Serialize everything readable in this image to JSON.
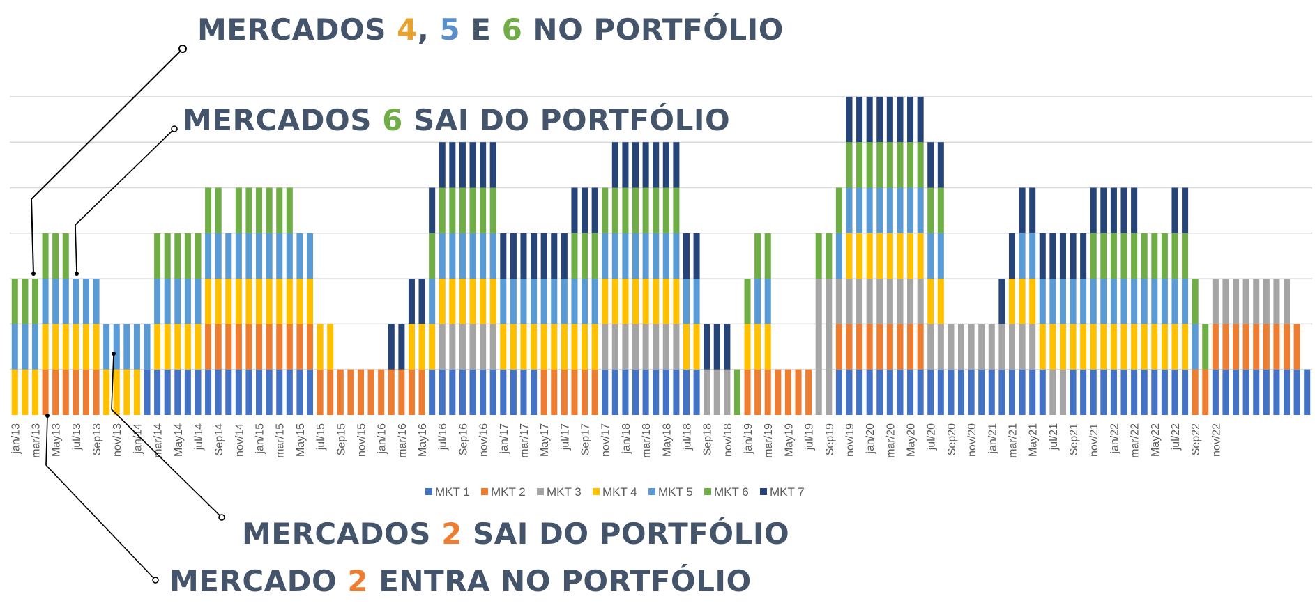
{
  "colors": {
    "MKT 1": "#4472c4",
    "MKT 2": "#ed7d31",
    "MKT 3": "#a5a5a5",
    "MKT 4": "#ffc000",
    "MKT 5": "#5b9bd5",
    "MKT 6": "#70ad47",
    "MKT 7": "#264478",
    "grid": "#d9d9d9",
    "annotation_text": "#44546a"
  },
  "annotations": {
    "a1": {
      "pre": "MERCADOS ",
      "n1": "4",
      "sep1": ", ",
      "n2": "5",
      "sep2": " E ",
      "n3": "6",
      "post": " NO PORTFÓLIO"
    },
    "a2": {
      "pre": "MERCADOS ",
      "n1": "6",
      "post": " SAI DO PORTFÓLIO"
    },
    "a3": {
      "pre": "MERCADOS ",
      "n1": "2",
      "post": " SAI DO PORTFÓLIO"
    },
    "a4": {
      "pre": "MERCADO ",
      "n1": "2",
      "post": " ENTRA NO PORTFÓLIO"
    }
  },
  "chart_data": {
    "type": "bar",
    "stacked": true,
    "ylim": [
      0,
      7
    ],
    "grid": true,
    "legend_position": "bottom",
    "x_tick_labels": [
      "jan/13",
      "mar/13",
      "May13",
      "jul/13",
      "Sep13",
      "nov/13",
      "jan/14",
      "mar/14",
      "May14",
      "jul/14",
      "Sep14",
      "nov/14",
      "jan/15",
      "mar/15",
      "May15",
      "jul/15",
      "Sep15",
      "nov/15",
      "jan/16",
      "mar/16",
      "May16",
      "jul/16",
      "Sep16",
      "nov/16",
      "jan/17",
      "mar/17",
      "May17",
      "jul/17",
      "Sep17",
      "nov/17",
      "jan/18",
      "mar/18",
      "May18",
      "jul/18",
      "Sep18",
      "nov/18",
      "jan/19",
      "mar/19",
      "May19",
      "jul/19",
      "Sep19",
      "nov/19",
      "jan/20",
      "mar/20",
      "May20",
      "jul/20",
      "Sep20",
      "nov/20",
      "jan/21",
      "mar/21",
      "May21",
      "jul/21",
      "Sep21",
      "nov/21",
      "jan/22",
      "mar/22",
      "May22",
      "jul/22",
      "Sep22",
      "nov/22"
    ],
    "series_names": [
      "MKT 1",
      "MKT 2",
      "MKT 3",
      "MKT 4",
      "MKT 5",
      "MKT 6",
      "MKT 7"
    ],
    "segments": [
      {
        "count": 3,
        "stack": [
          "MKT 4",
          "MKT 5",
          "MKT 6"
        ]
      },
      {
        "count": 3,
        "stack": [
          "MKT 2",
          "MKT 4",
          "MKT 5",
          "MKT 6"
        ]
      },
      {
        "count": 3,
        "stack": [
          "MKT 2",
          "MKT 4",
          "MKT 5"
        ]
      },
      {
        "count": 4,
        "stack": [
          "MKT 4",
          "MKT 5"
        ]
      },
      {
        "count": 1,
        "stack": [
          "MKT 1",
          "MKT 5"
        ]
      },
      {
        "count": 1,
        "stack": [
          "MKT 1",
          "MKT 4",
          "MKT 5",
          "MKT 6"
        ]
      },
      {
        "count": 4,
        "stack": [
          "MKT 1",
          "MKT 4",
          "MKT 5",
          "MKT 6"
        ]
      },
      {
        "count": 2,
        "stack": [
          "MKT 1",
          "MKT 2",
          "MKT 4",
          "MKT 5",
          "MKT 6"
        ]
      },
      {
        "count": 1,
        "stack": [
          "MKT 1",
          "MKT 2",
          "MKT 4",
          "MKT 5"
        ]
      },
      {
        "count": 6,
        "stack": [
          "MKT 1",
          "MKT 2",
          "MKT 4",
          "MKT 5",
          "MKT 6"
        ]
      },
      {
        "count": 1,
        "stack": [
          "MKT 1",
          "MKT 2",
          "MKT 4",
          "MKT 5"
        ]
      },
      {
        "count": 1,
        "stack": [
          "MKT 1",
          "MKT 2",
          "MKT 4",
          "MKT 5"
        ]
      },
      {
        "count": 2,
        "stack": [
          "MKT 2",
          "MKT 4"
        ]
      },
      {
        "count": 5,
        "stack": [
          "MKT 2"
        ]
      },
      {
        "count": 2,
        "stack": [
          "MKT 2",
          "MKT 7"
        ]
      },
      {
        "count": 2,
        "stack": [
          "MKT 2",
          "MKT 4",
          "MKT 7"
        ]
      },
      {
        "count": 1,
        "stack": [
          "MKT 1",
          "MKT 4",
          "MKT 5",
          "MKT 6",
          "MKT 7"
        ]
      },
      {
        "count": 6,
        "stack": [
          "MKT 1",
          "MKT 3",
          "MKT 4",
          "MKT 5",
          "MKT 6",
          "MKT 7"
        ]
      },
      {
        "count": 4,
        "stack": [
          "MKT 1",
          "MKT 4",
          "MKT 5",
          "MKT 7"
        ]
      },
      {
        "count": 3,
        "stack": [
          "MKT 2",
          "MKT 4",
          "MKT 5",
          "MKT 7"
        ]
      },
      {
        "count": 2,
        "stack": [
          "MKT 2",
          "MKT 4",
          "MKT 5",
          "MKT 6",
          "MKT 7"
        ]
      },
      {
        "count": 1,
        "stack": [
          "MKT 2",
          "MKT 4",
          "MKT 5",
          "MKT 6",
          "MKT 7"
        ]
      },
      {
        "count": 1,
        "stack": [
          "MKT 1",
          "MKT 3",
          "MKT 4",
          "MKT 5",
          "MKT 6"
        ]
      },
      {
        "count": 7,
        "stack": [
          "MKT 1",
          "MKT 3",
          "MKT 4",
          "MKT 5",
          "MKT 6",
          "MKT 7"
        ]
      },
      {
        "count": 2,
        "stack": [
          "MKT 1",
          "MKT 4",
          "MKT 5",
          "MKT 7"
        ]
      },
      {
        "count": 2,
        "stack": [
          "MKT 3",
          "MKT 7"
        ]
      },
      {
        "count": 1,
        "stack": [
          "MKT 3",
          "MKT 7"
        ]
      },
      {
        "count": 1,
        "stack": [
          "MKT 6"
        ]
      },
      {
        "count": 1,
        "stack": [
          "MKT 2",
          "MKT 4",
          "MKT 6"
        ]
      },
      {
        "count": 2,
        "stack": [
          "MKT 2",
          "MKT 4",
          "MKT 5",
          "MKT 6"
        ]
      },
      {
        "count": 4,
        "stack": [
          "MKT 2"
        ]
      },
      {
        "count": 2,
        "stack": [
          "MKT 3",
          "MKT 3",
          "MKT 3",
          "MKT 6"
        ]
      },
      {
        "count": 1,
        "stack": [
          "MKT 1",
          "MKT 2",
          "MKT 3",
          "MKT 5",
          "MKT 6"
        ]
      },
      {
        "count": 8,
        "stack": [
          "MKT 1",
          "MKT 2",
          "MKT 3",
          "MKT 4",
          "MKT 5",
          "MKT 6",
          "MKT 7"
        ]
      },
      {
        "count": 1,
        "stack": [
          "MKT 1",
          "MKT 3",
          "MKT 4",
          "MKT 5",
          "MKT 6",
          "MKT 7"
        ]
      },
      {
        "count": 1,
        "stack": [
          "MKT 1",
          "MKT 3",
          "MKT 4",
          "MKT 5",
          "MKT 6",
          "MKT 7"
        ]
      },
      {
        "count": 5,
        "stack": [
          "MKT 1",
          "MKT 3"
        ]
      },
      {
        "count": 1,
        "stack": [
          "MKT 1",
          "MKT 3",
          "MKT 7"
        ]
      },
      {
        "count": 1,
        "stack": [
          "MKT 1",
          "MKT 3",
          "MKT 4",
          "MKT 7"
        ]
      },
      {
        "count": 2,
        "stack": [
          "MKT 1",
          "MKT 3",
          "MKT 4",
          "MKT 5",
          "MKT 7"
        ]
      },
      {
        "count": 1,
        "stack": [
          "MKT 1",
          "MKT 4",
          "MKT 5",
          "MKT 7"
        ]
      },
      {
        "count": 2,
        "stack": [
          "MKT 3",
          "MKT 4",
          "MKT 5",
          "MKT 7"
        ]
      },
      {
        "count": 2,
        "stack": [
          "MKT 1",
          "MKT 4",
          "MKT 5",
          "MKT 7"
        ]
      },
      {
        "count": 3,
        "stack": [
          "MKT 1",
          "MKT 4",
          "MKT 5",
          "MKT 6",
          "MKT 7"
        ]
      },
      {
        "count": 2,
        "stack": [
          "MKT 1",
          "MKT 4",
          "MKT 5",
          "MKT 6",
          "MKT 7"
        ]
      },
      {
        "count": 3,
        "stack": [
          "MKT 1",
          "MKT 4",
          "MKT 5",
          "MKT 6"
        ]
      },
      {
        "count": 1,
        "stack": [
          "MKT 1",
          "MKT 4",
          "MKT 5",
          "MKT 6",
          "MKT 7"
        ]
      },
      {
        "count": 1,
        "stack": [
          "MKT 1",
          "MKT 4",
          "MKT 5",
          "MKT 6",
          "MKT 7"
        ]
      },
      {
        "count": 1,
        "stack": [
          "MKT 2",
          "MKT 5",
          "MKT 6"
        ]
      },
      {
        "count": 1,
        "stack": [
          "MKT 2",
          "MKT 6"
        ]
      },
      {
        "count": 8,
        "stack": [
          "MKT 1",
          "MKT 2",
          "MKT 3"
        ]
      },
      {
        "count": 1,
        "stack": [
          "MKT 1",
          "MKT 2"
        ]
      },
      {
        "count": 1,
        "stack": [
          "MKT 1"
        ]
      }
    ]
  },
  "legend": [
    "MKT 1",
    "MKT 2",
    "MKT 3",
    "MKT 4",
    "MKT 5",
    "MKT 6",
    "MKT 7"
  ]
}
